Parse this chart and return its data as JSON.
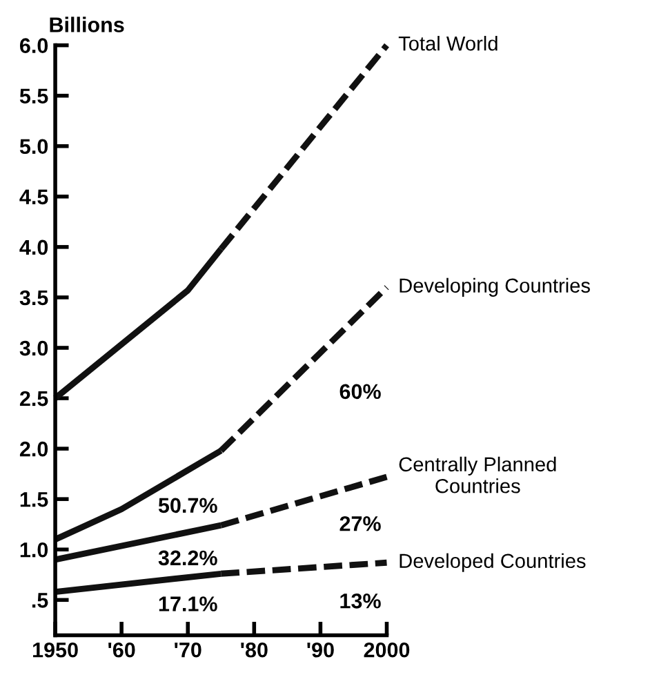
{
  "chart_data": {
    "type": "line",
    "ylabel": "Billions",
    "xlim": [
      1950,
      2000
    ],
    "xticks": [
      {
        "value": 1950,
        "label": "1950"
      },
      {
        "value": 1960,
        "label": "'60"
      },
      {
        "value": 1970,
        "label": "'70"
      },
      {
        "value": 1980,
        "label": "'80"
      },
      {
        "value": 1990,
        "label": "'90"
      },
      {
        "value": 2000,
        "label": "2000"
      }
    ],
    "ylim": [
      0.15,
      6.0
    ],
    "yticks": [
      {
        "value": 0.5,
        "label": ".5"
      },
      {
        "value": 1,
        "label": "1.0"
      },
      1.5,
      {
        "value": 2,
        "label": "2.0"
      },
      2.5,
      {
        "value": 3,
        "label": "3.0"
      },
      3.5,
      {
        "value": 4,
        "label": "4.0"
      },
      4.5,
      {
        "value": 5,
        "label": "5.0"
      },
      5.5,
      {
        "value": 6,
        "label": "6.0"
      }
    ],
    "grid": false,
    "legend": false,
    "marker": "none",
    "series": [
      {
        "color": "#111111",
        "line_style": "solid",
        "x": [
          1950,
          1970,
          1975
        ],
        "values": [
          2.5,
          3.57,
          3.98
        ]
      },
      {
        "name": "Total World",
        "color": "#111111",
        "line_style": "dashed",
        "x": [
          1975,
          2000
        ],
        "values": [
          3.98,
          6.0
        ]
      },
      {
        "color": "#111111",
        "line_style": "solid",
        "x": [
          1950,
          1960,
          1975
        ],
        "values": [
          1.1,
          1.4,
          1.98
        ]
      },
      {
        "name": "Developing Countries",
        "color": "#111111",
        "line_style": "dashed",
        "x": [
          1975,
          2000
        ],
        "values": [
          1.98,
          3.6
        ]
      },
      {
        "color": "#111111",
        "line_style": "solid",
        "x": [
          1950,
          1975
        ],
        "values": [
          0.9,
          1.24
        ]
      },
      {
        "name": "Centrally Planned\nCountries",
        "color": "#111111",
        "line_style": "dashed",
        "x": [
          1975,
          2000
        ],
        "values": [
          1.24,
          1.72
        ]
      },
      {
        "color": "#111111",
        "line_style": "solid",
        "x": [
          1950,
          1975
        ],
        "values": [
          0.58,
          0.76
        ]
      },
      {
        "name": "Developed Countries",
        "color": "#111111",
        "line_style": "dashed",
        "x": [
          1975,
          2000
        ],
        "values": [
          0.76,
          0.87
        ]
      }
    ],
    "annotations": [
      "50.7%",
      "32.2%",
      "17.1%",
      "60%",
      "27%",
      "13%"
    ]
  }
}
